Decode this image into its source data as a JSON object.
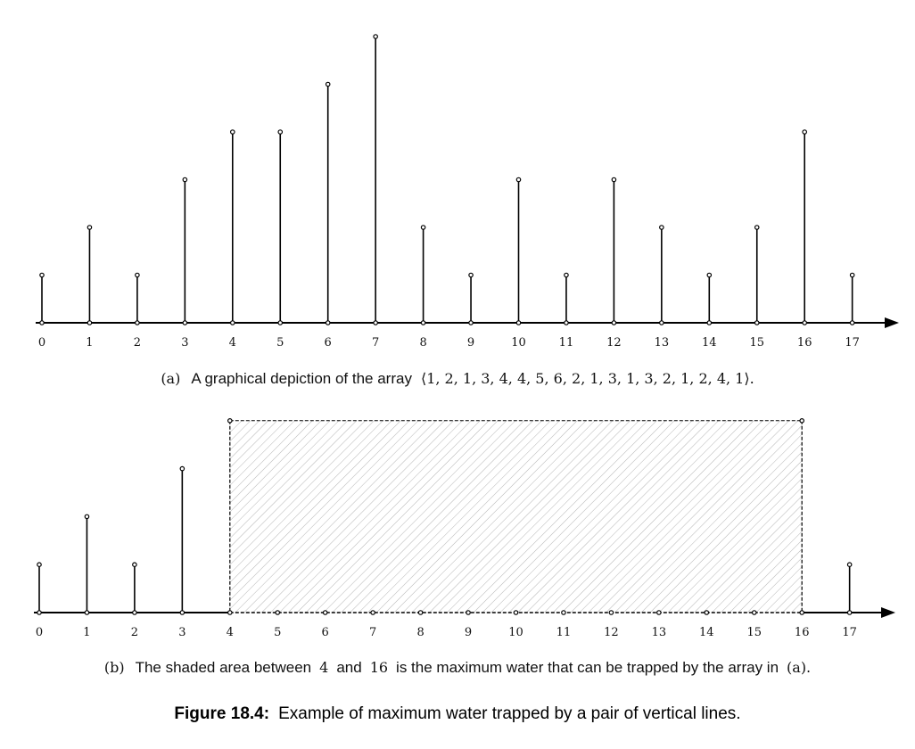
{
  "chart_data": [
    {
      "type": "bar",
      "x": [
        0,
        1,
        2,
        3,
        4,
        5,
        6,
        7,
        8,
        9,
        10,
        11,
        12,
        13,
        14,
        15,
        16,
        17
      ],
      "values": [
        1,
        2,
        1,
        3,
        4,
        4,
        5,
        6,
        2,
        1,
        3,
        1,
        3,
        2,
        1,
        2,
        4,
        1
      ],
      "caption_label": "(a)",
      "caption_text": "A graphical depiction of the array",
      "caption_math": "⟨1, 2, 1, 3, 4, 4, 5, 6, 2, 1, 3, 1, 3, 2, 1, 2, 4, 1⟩."
    },
    {
      "type": "bar",
      "x": [
        0,
        1,
        2,
        3,
        4,
        5,
        6,
        7,
        8,
        9,
        10,
        11,
        12,
        13,
        14,
        15,
        16,
        17
      ],
      "values": [
        1,
        2,
        1,
        3,
        4,
        0,
        0,
        0,
        0,
        0,
        0,
        0,
        0,
        0,
        0,
        0,
        4,
        1
      ],
      "shaded_region": {
        "from": 4,
        "to": 16,
        "height": 4
      },
      "caption_label": "(b)",
      "caption_text_1": "The shaded area between",
      "caption_num_1": "4",
      "caption_text_2": "and",
      "caption_num_2": "16",
      "caption_text_3": "is the maximum water that can be trapped by the array in",
      "caption_ref": "(a)."
    }
  ],
  "figure": {
    "label": "Figure 18.4:",
    "text": "Example of maximum water trapped by a pair of vertical lines."
  }
}
